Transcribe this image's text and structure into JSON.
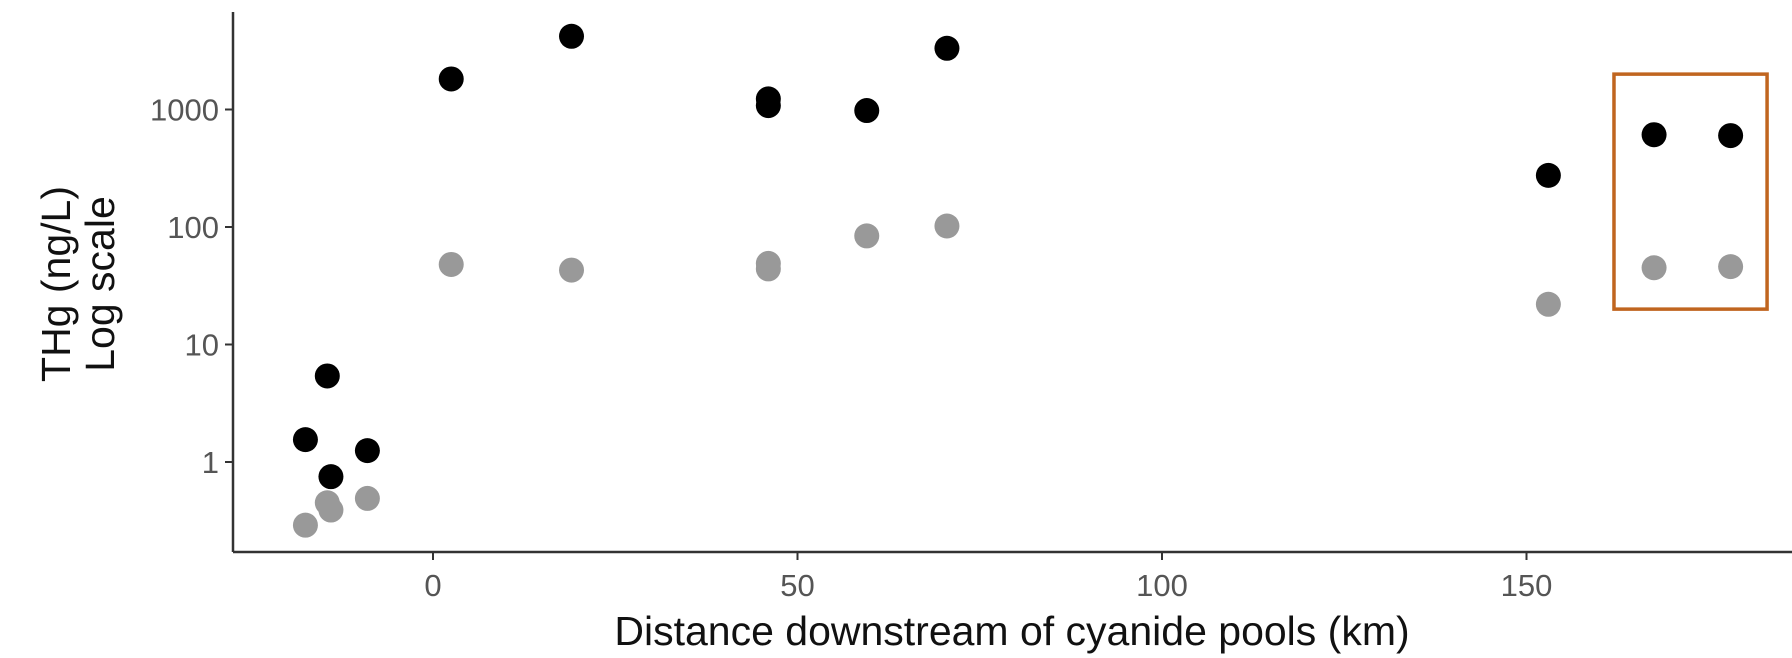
{
  "chart_data": {
    "type": "scatter",
    "xlabel": "Distance downstream of cyanide pools (km)",
    "ylabel_lines": [
      "THg (ng/L)",
      "Log scale"
    ],
    "y_scale": "log10",
    "grid": false,
    "xlim": [
      -27,
      186
    ],
    "ylim": [
      0.18,
      7000
    ],
    "x_ticks": [
      0,
      50,
      100,
      150
    ],
    "x_tick_labels": [
      "0",
      "50",
      "100",
      "150"
    ],
    "y_ticks": [
      1,
      10,
      100,
      1000
    ],
    "y_tick_labels": [
      "1",
      "10",
      "100",
      "1000"
    ],
    "highlight_box": {
      "x_range": [
        162,
        183
      ],
      "y_range": [
        20,
        2000
      ],
      "color": "#c0651f"
    },
    "series": [
      {
        "color": "#000000",
        "x": [
          -17.5,
          -14.5,
          -14,
          -9,
          2.5,
          19,
          46,
          46,
          59.5,
          70.5,
          153,
          167.5,
          178
        ],
        "y": [
          1.55,
          5.4,
          0.75,
          1.25,
          1820,
          4200,
          1230,
          1080,
          980,
          3320,
          275,
          610,
          600
        ]
      },
      {
        "color": "#999999",
        "x": [
          -17.5,
          -14.5,
          -14,
          -9,
          2.5,
          19,
          46,
          46,
          59.5,
          70.5,
          153,
          167.5,
          178
        ],
        "y": [
          0.29,
          0.45,
          0.39,
          0.49,
          48,
          43,
          49,
          44,
          84,
          102,
          22,
          45,
          46
        ]
      }
    ]
  }
}
